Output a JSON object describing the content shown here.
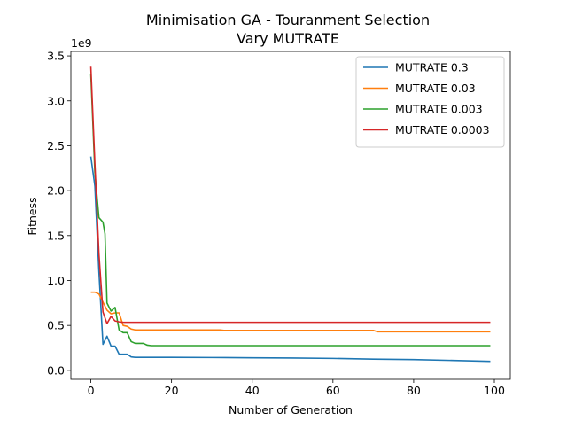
{
  "chart_data": {
    "type": "line",
    "title": "Minimisation GA - Touranment Selection",
    "subtitle": "Vary MUTRATE",
    "xlabel": "Number of Generation",
    "ylabel": "Fitness",
    "y_offset_label": "1e9",
    "xlim": [
      -4.95,
      103.95
    ],
    "ylim": [
      -0.1,
      3.55
    ],
    "x_ticks": [
      0,
      20,
      40,
      60,
      80,
      100
    ],
    "y_ticks": [
      0.0,
      0.5,
      1.0,
      1.5,
      2.0,
      2.5,
      3.0,
      3.5
    ],
    "y_tick_labels": [
      "0.0",
      "0.5",
      "1.0",
      "1.5",
      "2.0",
      "2.5",
      "3.0",
      "3.5"
    ],
    "grid": false,
    "legend_position": "top-right",
    "colors": [
      "#1f77b4",
      "#ff7f0e",
      "#2ca02c",
      "#d62728"
    ],
    "series": [
      {
        "name": "MUTRATE 0.3",
        "points": [
          [
            0,
            2.38
          ],
          [
            1,
            2.05
          ],
          [
            2,
            1.1
          ],
          [
            3,
            0.29
          ],
          [
            4,
            0.38
          ],
          [
            5,
            0.27
          ],
          [
            6,
            0.27
          ],
          [
            7,
            0.18
          ],
          [
            8,
            0.18
          ],
          [
            9,
            0.18
          ],
          [
            10,
            0.15
          ],
          [
            11,
            0.145
          ],
          [
            20,
            0.145
          ],
          [
            30,
            0.143
          ],
          [
            40,
            0.14
          ],
          [
            50,
            0.137
          ],
          [
            60,
            0.133
          ],
          [
            70,
            0.125
          ],
          [
            80,
            0.12
          ],
          [
            90,
            0.11
          ],
          [
            99,
            0.1
          ]
        ]
      },
      {
        "name": "MUTRATE 0.03",
        "points": [
          [
            0,
            0.87
          ],
          [
            1,
            0.87
          ],
          [
            2,
            0.85
          ],
          [
            3,
            0.76
          ],
          [
            4,
            0.67
          ],
          [
            5,
            0.63
          ],
          [
            6,
            0.64
          ],
          [
            7,
            0.64
          ],
          [
            8,
            0.5
          ],
          [
            9,
            0.49
          ],
          [
            10,
            0.46
          ],
          [
            11,
            0.45
          ],
          [
            12,
            0.45
          ],
          [
            20,
            0.45
          ],
          [
            32,
            0.45
          ],
          [
            33,
            0.445
          ],
          [
            60,
            0.445
          ],
          [
            70,
            0.445
          ],
          [
            71,
            0.43
          ],
          [
            99,
            0.43
          ]
        ]
      },
      {
        "name": "MUTRATE 0.003",
        "points": [
          [
            0,
            3.3
          ],
          [
            1,
            2.2
          ],
          [
            2,
            1.7
          ],
          [
            3,
            1.65
          ],
          [
            3.5,
            1.52
          ],
          [
            4,
            0.75
          ],
          [
            5,
            0.66
          ],
          [
            6,
            0.7
          ],
          [
            7,
            0.45
          ],
          [
            8,
            0.42
          ],
          [
            9,
            0.42
          ],
          [
            10,
            0.32
          ],
          [
            11,
            0.3
          ],
          [
            12,
            0.3
          ],
          [
            13,
            0.3
          ],
          [
            14,
            0.28
          ],
          [
            15,
            0.275
          ],
          [
            99,
            0.275
          ]
        ]
      },
      {
        "name": "MUTRATE 0.0003",
        "points": [
          [
            0,
            3.38
          ],
          [
            1,
            2.3
          ],
          [
            2,
            1.3
          ],
          [
            3,
            0.65
          ],
          [
            4,
            0.52
          ],
          [
            5,
            0.6
          ],
          [
            6,
            0.55
          ],
          [
            7,
            0.54
          ],
          [
            8,
            0.535
          ],
          [
            99,
            0.535
          ]
        ]
      }
    ]
  }
}
